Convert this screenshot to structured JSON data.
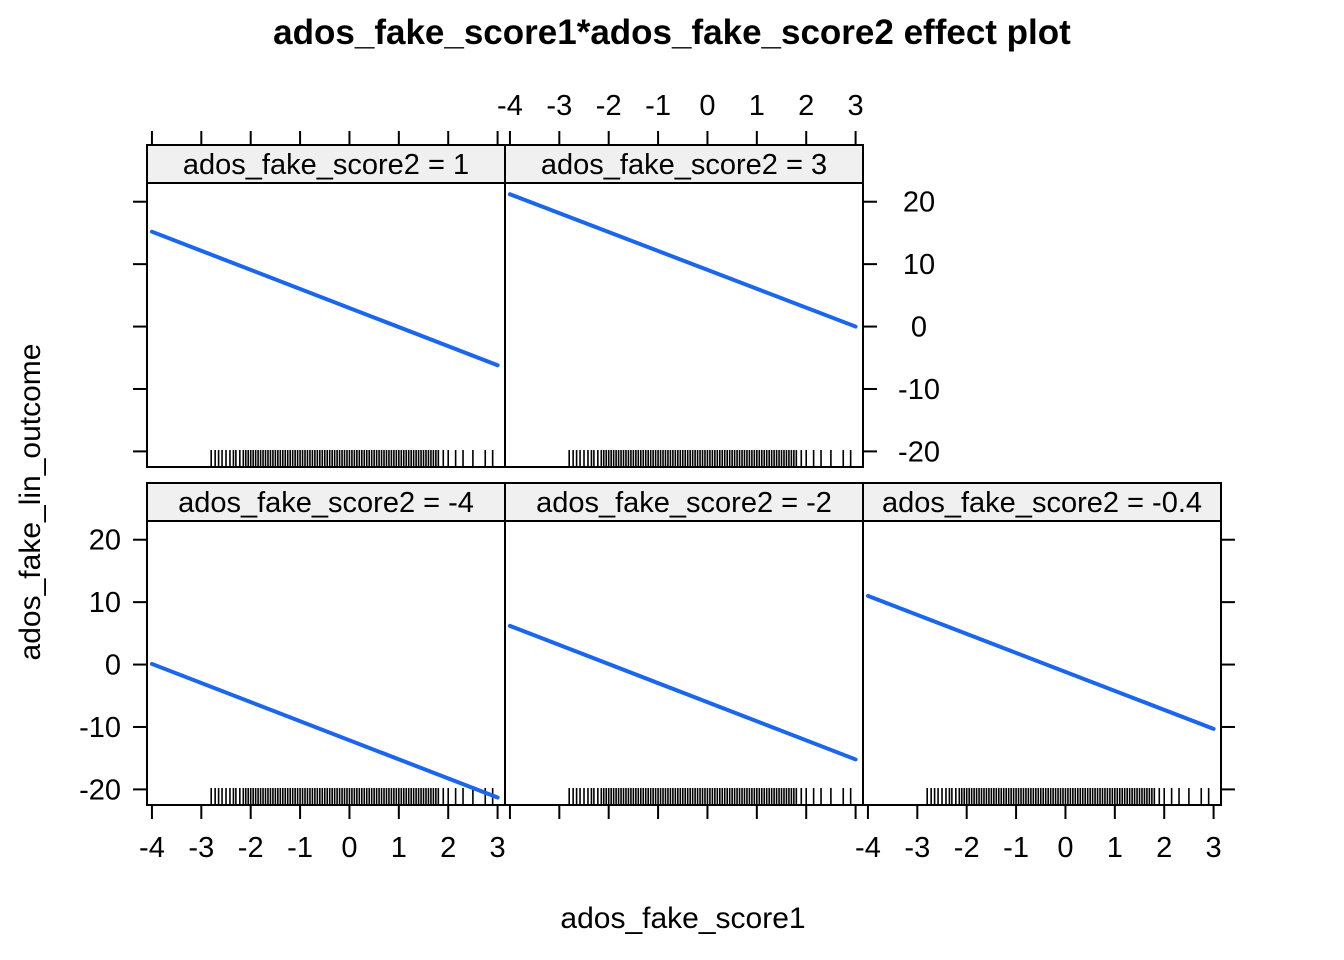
{
  "chart_data": {
    "type": "line",
    "title": "ados_fake_score1*ados_fake_score2 effect plot",
    "xlabel": "ados_fake_score1",
    "ylabel": "ados_fake_lin_outcome",
    "xlim": [
      -4.1,
      3.15
    ],
    "ylim": [
      -22.5,
      23
    ],
    "x_ticks": [
      -4,
      -3,
      -2,
      -1,
      0,
      1,
      2,
      3
    ],
    "y_ticks": [
      -20,
      -10,
      0,
      10,
      20
    ],
    "line_color": "#1a66ee",
    "panels": [
      {
        "strip": "ados_fake_score2 = -4",
        "row": 1,
        "col": 0,
        "x": [
          -4,
          3
        ],
        "y": [
          0.1,
          -21.3
        ]
      },
      {
        "strip": "ados_fake_score2 = -2",
        "row": 1,
        "col": 1,
        "x": [
          -4,
          3
        ],
        "y": [
          6.2,
          -15.2
        ]
      },
      {
        "strip": "ados_fake_score2 = -0.4",
        "row": 1,
        "col": 2,
        "x": [
          -4,
          3
        ],
        "y": [
          11.0,
          -10.3
        ]
      },
      {
        "strip": "ados_fake_score2 = 1",
        "row": 0,
        "col": 0,
        "x": [
          -4,
          3
        ],
        "y": [
          15.2,
          -6.2
        ]
      },
      {
        "strip": "ados_fake_score2 = 3",
        "row": 0,
        "col": 1,
        "x": [
          -4,
          3
        ],
        "y": [
          21.2,
          0.0
        ]
      }
    ],
    "rug_x": [
      -2.8,
      -2.72,
      -2.65,
      -2.58,
      -2.5,
      -2.42,
      -2.35,
      -2.3,
      -2.22,
      -2.15,
      -2.1,
      -2.05,
      -2.0,
      -1.95,
      -1.9,
      -1.85,
      -1.8,
      -1.75,
      -1.7,
      -1.65,
      -1.6,
      -1.55,
      -1.5,
      -1.45,
      -1.4,
      -1.35,
      -1.3,
      -1.25,
      -1.2,
      -1.15,
      -1.1,
      -1.05,
      -1.0,
      -0.95,
      -0.9,
      -0.85,
      -0.8,
      -0.75,
      -0.7,
      -0.65,
      -0.6,
      -0.55,
      -0.5,
      -0.45,
      -0.4,
      -0.35,
      -0.3,
      -0.25,
      -0.2,
      -0.15,
      -0.1,
      -0.05,
      0.0,
      0.05,
      0.1,
      0.15,
      0.2,
      0.25,
      0.3,
      0.35,
      0.4,
      0.45,
      0.5,
      0.55,
      0.6,
      0.65,
      0.7,
      0.75,
      0.8,
      0.85,
      0.9,
      0.95,
      1.0,
      1.05,
      1.1,
      1.15,
      1.2,
      1.25,
      1.3,
      1.35,
      1.4,
      1.45,
      1.5,
      1.55,
      1.6,
      1.65,
      1.7,
      1.75,
      1.8,
      1.9,
      2.0,
      2.15,
      2.3,
      2.5,
      2.75,
      2.9
    ]
  }
}
